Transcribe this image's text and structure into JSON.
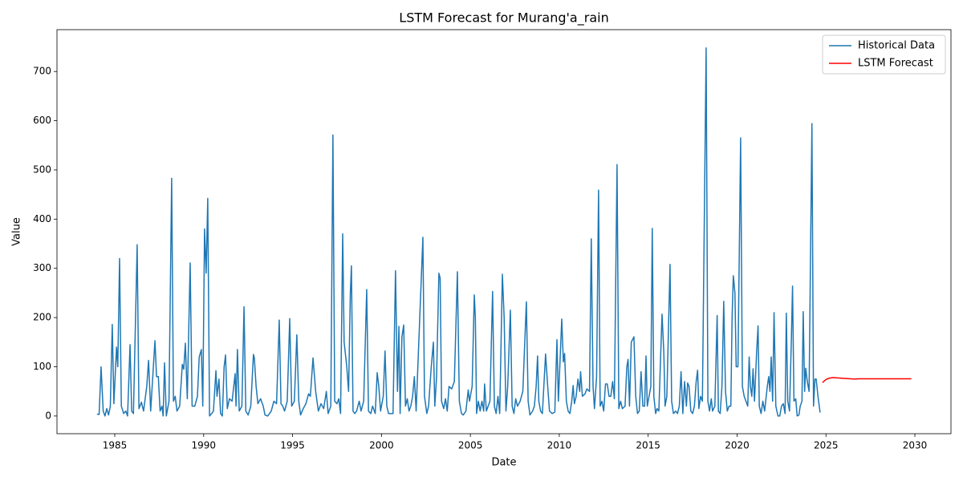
{
  "chart_data": {
    "type": "line",
    "title": "LSTM Forecast for Murang'a_rain",
    "x_label": "Date",
    "y_label": "Value",
    "xlim": [
      1981.75,
      2032.03
    ],
    "ylim": [
      -36,
      785
    ],
    "xticks": [
      1985,
      1990,
      1995,
      2000,
      2005,
      2010,
      2015,
      2020,
      2025,
      2030
    ],
    "yticks": [
      0,
      100,
      200,
      300,
      400,
      500,
      600,
      700
    ],
    "legend": "upper right",
    "series": [
      {
        "name": "Historical Data",
        "color": "#1f77b4",
        "x": [
          1984.0,
          1984.12,
          1984.23,
          1984.35,
          1984.45,
          1984.55,
          1984.65,
          1984.75,
          1984.86,
          1984.95,
          1985.1,
          1985.17,
          1985.27,
          1985.37,
          1985.5,
          1985.62,
          1985.72,
          1985.86,
          1985.95,
          1986.05,
          1986.26,
          1986.36,
          1986.5,
          1986.62,
          1986.8,
          1986.9,
          1987.02,
          1987.26,
          1987.35,
          1987.45,
          1987.55,
          1987.65,
          1987.72,
          1987.8,
          1987.9,
          1988.05,
          1988.2,
          1988.3,
          1988.4,
          1988.5,
          1988.65,
          1988.8,
          1988.88,
          1988.97,
          1989.08,
          1989.24,
          1989.35,
          1989.5,
          1989.65,
          1989.75,
          1989.87,
          1989.95,
          1990.05,
          1990.14,
          1990.23,
          1990.33,
          1990.45,
          1990.55,
          1990.69,
          1990.75,
          1990.86,
          1990.95,
          1991.05,
          1991.15,
          1991.23,
          1991.33,
          1991.45,
          1991.6,
          1991.77,
          1991.82,
          1991.9,
          1992.0,
          1992.15,
          1992.27,
          1992.37,
          1992.5,
          1992.65,
          1992.8,
          1992.85,
          1992.95,
          1993.05,
          1993.2,
          1993.35,
          1993.45,
          1993.6,
          1993.8,
          1993.95,
          1994.1,
          1994.25,
          1994.35,
          1994.45,
          1994.55,
          1994.7,
          1994.84,
          1994.95,
          1995.1,
          1995.24,
          1995.35,
          1995.45,
          1995.6,
          1995.75,
          1995.9,
          1996.0,
          1996.15,
          1996.3,
          1996.45,
          1996.6,
          1996.75,
          1996.9,
          1997.0,
          1997.15,
          1997.27,
          1997.37,
          1997.5,
          1997.6,
          1997.7,
          1997.82,
          1997.9,
          1998.05,
          1998.15,
          1998.25,
          1998.31,
          1998.4,
          1998.5,
          1998.6,
          1998.75,
          1998.85,
          1999.0,
          1999.17,
          1999.27,
          1999.4,
          1999.5,
          1999.65,
          1999.76,
          1999.85,
          1999.95,
          2000.1,
          2000.2,
          2000.3,
          2000.4,
          2000.5,
          2000.65,
          2000.79,
          2000.9,
          2000.98,
          2001.05,
          2001.15,
          2001.25,
          2001.35,
          2001.45,
          2001.55,
          2001.65,
          2001.75,
          2001.85,
          2001.95,
          2002.1,
          2002.33,
          2002.42,
          2002.55,
          2002.65,
          2002.8,
          2002.92,
          2003.0,
          2003.1,
          2003.23,
          2003.3,
          2003.38,
          2003.5,
          2003.6,
          2003.7,
          2003.8,
          2003.95,
          2004.1,
          2004.27,
          2004.38,
          2004.5,
          2004.6,
          2004.75,
          2004.88,
          2004.95,
          2005.1,
          2005.22,
          2005.28,
          2005.35,
          2005.45,
          2005.55,
          2005.65,
          2005.75,
          2005.8,
          2005.9,
          2006.1,
          2006.25,
          2006.35,
          2006.45,
          2006.55,
          2006.65,
          2006.8,
          2006.9,
          2007.0,
          2007.1,
          2007.25,
          2007.35,
          2007.45,
          2007.55,
          2007.65,
          2007.8,
          2007.95,
          2008.15,
          2008.25,
          2008.35,
          2008.5,
          2008.6,
          2008.7,
          2008.78,
          2008.85,
          2008.95,
          2009.05,
          2009.23,
          2009.35,
          2009.45,
          2009.6,
          2009.75,
          2009.8,
          2009.87,
          2009.95,
          2010.14,
          2010.23,
          2010.3,
          2010.4,
          2010.5,
          2010.6,
          2010.7,
          2010.78,
          2010.85,
          2010.95,
          2011.05,
          2011.15,
          2011.2,
          2011.3,
          2011.45,
          2011.55,
          2011.7,
          2011.8,
          2011.9,
          2011.98,
          2012.1,
          2012.21,
          2012.3,
          2012.4,
          2012.5,
          2012.6,
          2012.7,
          2012.8,
          2012.9,
          2013.0,
          2013.1,
          2013.25,
          2013.35,
          2013.45,
          2013.55,
          2013.7,
          2013.8,
          2013.87,
          2013.95,
          2014.05,
          2014.2,
          2014.3,
          2014.4,
          2014.5,
          2014.6,
          2014.7,
          2014.8,
          2014.88,
          2014.95,
          2015.05,
          2015.15,
          2015.23,
          2015.32,
          2015.42,
          2015.5,
          2015.6,
          2015.78,
          2015.88,
          2015.95,
          2016.05,
          2016.23,
          2016.32,
          2016.42,
          2016.55,
          2016.65,
          2016.75,
          2016.85,
          2016.95,
          2017.05,
          2017.15,
          2017.22,
          2017.3,
          2017.4,
          2017.5,
          2017.6,
          2017.7,
          2017.78,
          2017.85,
          2017.95,
          2018.05,
          2018.26,
          2018.36,
          2018.45,
          2018.55,
          2018.62,
          2018.75,
          2018.88,
          2018.95,
          2019.05,
          2019.15,
          2019.25,
          2019.35,
          2019.45,
          2019.55,
          2019.65,
          2019.72,
          2019.79,
          2019.88,
          2019.95,
          2020.05,
          2020.2,
          2020.3,
          2020.4,
          2020.5,
          2020.6,
          2020.68,
          2020.75,
          2020.83,
          2020.9,
          2020.98,
          2021.1,
          2021.18,
          2021.25,
          2021.35,
          2021.45,
          2021.55,
          2021.7,
          2021.78,
          2021.85,
          2021.92,
          2022.0,
          2022.08,
          2022.18,
          2022.3,
          2022.4,
          2022.5,
          2022.6,
          2022.7,
          2022.77,
          2022.85,
          2022.95,
          2023.05,
          2023.12,
          2023.2,
          2023.3,
          2023.38,
          2023.48,
          2023.55,
          2023.65,
          2023.72,
          2023.8,
          2023.86,
          2023.95,
          2024.05,
          2024.21,
          2024.3,
          2024.38,
          2024.45,
          2024.55,
          2024.67
        ],
        "values": [
          4,
          3,
          100,
          10,
          0,
          15,
          2,
          20,
          186,
          25,
          140,
          100,
          320,
          20,
          5,
          10,
          0,
          145,
          10,
          5,
          348,
          15,
          28,
          10,
          60,
          113,
          10,
          153,
          80,
          80,
          10,
          20,
          0,
          108,
          0,
          30,
          483,
          30,
          40,
          10,
          20,
          105,
          95,
          148,
          35,
          311,
          20,
          20,
          40,
          120,
          135,
          20,
          380,
          290,
          442,
          0,
          5,
          10,
          92,
          40,
          75,
          5,
          0,
          100,
          124,
          15,
          35,
          30,
          86,
          20,
          135,
          10,
          20,
          222,
          10,
          2,
          20,
          125,
          118,
          60,
          25,
          35,
          20,
          2,
          0,
          10,
          30,
          25,
          195,
          25,
          20,
          10,
          30,
          198,
          20,
          30,
          165,
          30,
          2,
          15,
          25,
          45,
          40,
          118,
          50,
          10,
          25,
          15,
          50,
          5,
          20,
          571,
          30,
          25,
          35,
          5,
          370,
          150,
          100,
          50,
          250,
          305,
          10,
          5,
          10,
          30,
          10,
          30,
          257,
          10,
          5,
          20,
          5,
          88,
          60,
          10,
          40,
          132,
          20,
          5,
          5,
          5,
          295,
          50,
          182,
          5,
          160,
          185,
          20,
          35,
          10,
          20,
          40,
          80,
          10,
          150,
          363,
          40,
          5,
          20,
          100,
          150,
          20,
          80,
          290,
          280,
          30,
          15,
          35,
          10,
          60,
          55,
          70,
          293,
          30,
          5,
          2,
          10,
          53,
          30,
          60,
          246,
          200,
          5,
          30,
          10,
          30,
          10,
          65,
          10,
          30,
          253,
          20,
          5,
          40,
          5,
          288,
          200,
          10,
          60,
          215,
          20,
          5,
          35,
          20,
          30,
          50,
          232,
          30,
          2,
          10,
          20,
          60,
          122,
          30,
          10,
          5,
          126,
          60,
          10,
          5,
          8,
          70,
          155,
          30,
          197,
          110,
          127,
          30,
          10,
          5,
          30,
          62,
          25,
          40,
          75,
          50,
          90,
          40,
          45,
          55,
          50,
          360,
          60,
          15,
          80,
          459,
          20,
          30,
          10,
          65,
          65,
          40,
          40,
          70,
          35,
          511,
          15,
          30,
          15,
          20,
          100,
          115,
          20,
          150,
          161,
          40,
          5,
          10,
          90,
          20,
          20,
          122,
          20,
          40,
          60,
          381,
          40,
          5,
          15,
          10,
          207,
          130,
          20,
          40,
          308,
          30,
          5,
          10,
          5,
          20,
          90,
          5,
          70,
          20,
          67,
          60,
          10,
          5,
          20,
          70,
          93,
          15,
          40,
          30,
          748,
          30,
          10,
          35,
          10,
          20,
          204,
          10,
          5,
          60,
          233,
          50,
          10,
          20,
          20,
          200,
          285,
          250,
          100,
          100,
          565,
          60,
          40,
          30,
          20,
          120,
          60,
          40,
          96,
          30,
          130,
          183,
          20,
          5,
          30,
          10,
          60,
          80,
          50,
          120,
          30,
          210,
          20,
          0,
          0,
          20,
          25,
          5,
          209,
          30,
          10,
          150,
          264,
          30,
          35,
          0,
          2,
          20,
          30,
          212,
          50,
          97,
          70,
          50,
          594,
          20,
          75,
          75,
          40,
          7
        ]
      },
      {
        "name": "LSTM Forecast",
        "color": "#ff0000",
        "x": [
          2024.8,
          2025.0,
          2025.2,
          2025.4,
          2025.6,
          2025.8,
          2026.0,
          2026.2,
          2026.4,
          2026.6,
          2026.8,
          2027.0,
          2027.5,
          2028.0,
          2028.5,
          2029.0,
          2029.5,
          2029.8
        ],
        "values": [
          68,
          74,
          77,
          78,
          77.5,
          77,
          76.5,
          76,
          75.5,
          75,
          75.5,
          75.5,
          75.5,
          75.5,
          75.5,
          75.5,
          75.5,
          75.5
        ]
      }
    ]
  }
}
